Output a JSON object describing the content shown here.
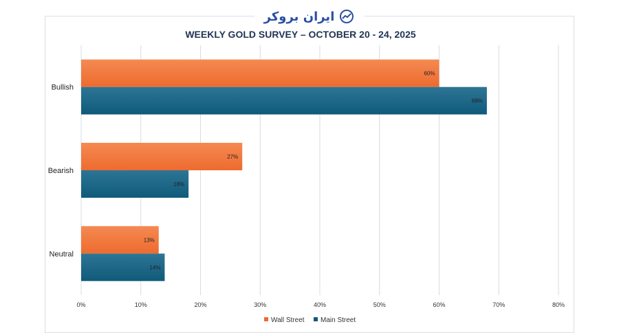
{
  "logo": {
    "text": "ایران بروکر",
    "icon": "chart-trend-icon"
  },
  "chart_data": {
    "type": "bar",
    "orientation": "horizontal",
    "title": "WEEKLY GOLD SURVEY – OCTOBER 20 - 24, 2025",
    "categories": [
      "Bullish",
      "Bearish",
      "Neutral"
    ],
    "series": [
      {
        "name": "Wall Street",
        "values": [
          60,
          27,
          13
        ],
        "labels": [
          "60%",
          "27%",
          "13%"
        ],
        "color": "#ee6b2e",
        "color_light": "#f48a52"
      },
      {
        "name": "Main Street",
        "values": [
          68,
          18,
          14
        ],
        "labels": [
          "68%",
          "18%",
          "14%"
        ],
        "color": "#0f5a7a",
        "color_light": "#2e7595"
      }
    ],
    "xlim": [
      0,
      80
    ],
    "xticks": [
      0,
      10,
      20,
      30,
      40,
      50,
      60,
      70,
      80
    ],
    "xtick_labels": [
      "0%",
      "10%",
      "20%",
      "30%",
      "40%",
      "50%",
      "60%",
      "70%",
      "80%"
    ],
    "grid": true,
    "legend": "bottom"
  }
}
